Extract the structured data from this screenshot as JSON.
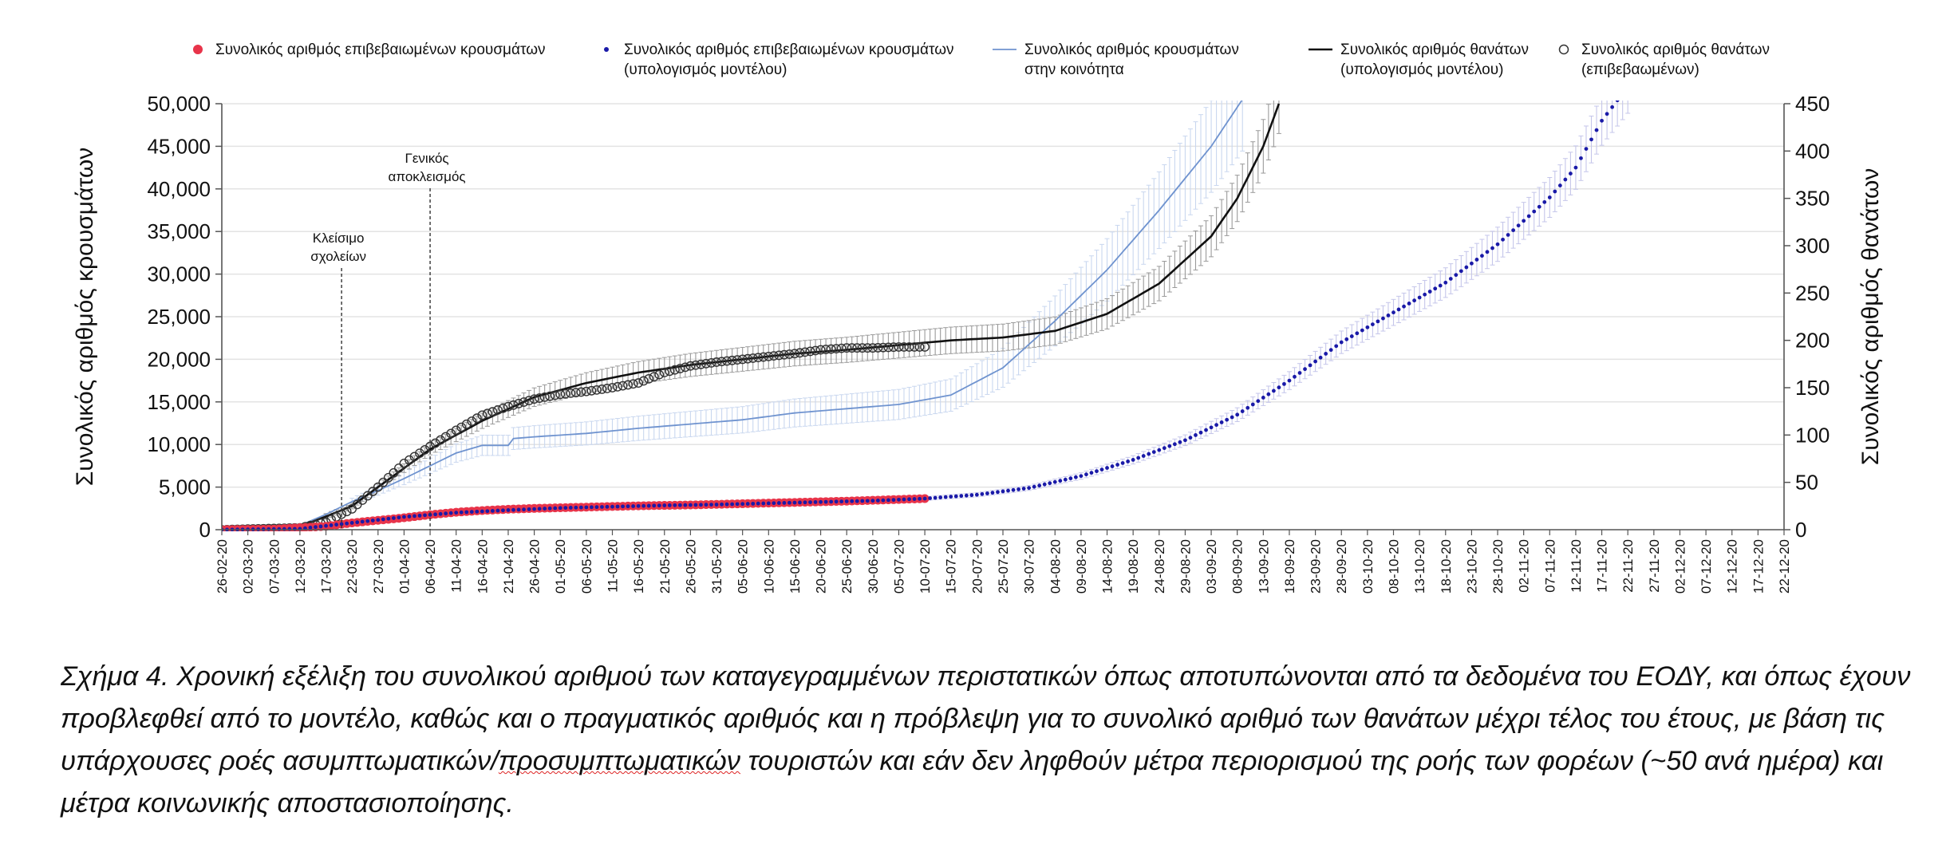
{
  "chart_data": {
    "type": "line",
    "x_dates": [
      "26-02-20",
      "02-03-20",
      "07-03-20",
      "12-03-20",
      "17-03-20",
      "22-03-20",
      "27-03-20",
      "01-04-20",
      "06-04-20",
      "11-04-20",
      "16-04-20",
      "21-04-20",
      "26-04-20",
      "01-05-20",
      "06-05-20",
      "11-05-20",
      "16-05-20",
      "21-05-20",
      "26-05-20",
      "31-05-20",
      "05-06-20",
      "10-06-20",
      "15-06-20",
      "20-06-20",
      "25-06-20",
      "30-06-20",
      "05-07-20",
      "10-07-20",
      "15-07-20",
      "20-07-20",
      "25-07-20",
      "30-07-20",
      "04-08-20",
      "09-08-20",
      "14-08-20",
      "19-08-20",
      "24-08-20",
      "29-08-20",
      "03-09-20",
      "08-09-20",
      "13-09-20",
      "18-09-20",
      "23-09-20",
      "28-09-20",
      "03-10-20",
      "08-10-20",
      "13-10-20",
      "18-10-20",
      "23-10-20",
      "28-10-20",
      "02-11-20",
      "07-11-20",
      "12-11-20",
      "17-11-20",
      "22-11-20",
      "27-11-20",
      "02-12-20",
      "07-12-20",
      "12-12-20",
      "17-12-20",
      "22-12-20"
    ],
    "y_left": {
      "label": "Συνολικός αριθμός κρουσμάτων",
      "ylim": [
        0,
        50000
      ],
      "ticks": [
        "0",
        "5,000",
        "10,000",
        "15,000",
        "20,000",
        "25,000",
        "30,000",
        "35,000",
        "40,000",
        "45,000",
        "50,000"
      ]
    },
    "y_right": {
      "label": "Συνολικός αριθμός θανάτων",
      "ylim": [
        0,
        450
      ],
      "ticks": [
        "0",
        "50",
        "100",
        "150",
        "200",
        "250",
        "300",
        "350",
        "400",
        "450"
      ]
    },
    "grid": true,
    "legend_position": "top",
    "series": [
      {
        "name": "Συνολικός αριθμός επιβεβαιωμένων κρουσμάτων",
        "axis": "left",
        "style": "red-dots",
        "color": "#e8344a",
        "points": [
          [
            "26-02-20",
            0
          ],
          [
            "07-03-20",
            60
          ],
          [
            "17-03-20",
            400
          ],
          [
            "22-03-20",
            800
          ],
          [
            "27-03-20",
            1100
          ],
          [
            "01-04-20",
            1400
          ],
          [
            "06-04-20",
            1750
          ],
          [
            "11-04-20",
            2050
          ],
          [
            "16-04-20",
            2250
          ],
          [
            "21-04-20",
            2400
          ],
          [
            "26-04-20",
            2500
          ],
          [
            "06-05-20",
            2650
          ],
          [
            "16-05-20",
            2800
          ],
          [
            "26-05-20",
            2900
          ],
          [
            "05-06-20",
            3050
          ],
          [
            "15-06-20",
            3200
          ],
          [
            "25-06-20",
            3350
          ],
          [
            "05-07-20",
            3550
          ],
          [
            "10-07-20",
            3650
          ]
        ]
      },
      {
        "name": "Συνολικός αριθμός επιβεβαιωμένων κρουσμάτων (υπολογισμός μοντέλου)",
        "axis": "left",
        "style": "blue-dots",
        "color": "#1a1aa8",
        "points": [
          [
            "26-02-20",
            0
          ],
          [
            "12-03-20",
            100
          ],
          [
            "22-03-20",
            800
          ],
          [
            "01-04-20",
            1500
          ],
          [
            "11-04-20",
            2000
          ],
          [
            "21-04-20",
            2300
          ],
          [
            "01-05-20",
            2550
          ],
          [
            "11-05-20",
            2700
          ],
          [
            "21-05-20",
            2850
          ],
          [
            "31-05-20",
            2950
          ],
          [
            "10-06-20",
            3100
          ],
          [
            "20-06-20",
            3250
          ],
          [
            "30-06-20",
            3400
          ],
          [
            "10-07-20",
            3650
          ],
          [
            "20-07-20",
            4100
          ],
          [
            "30-07-20",
            4900
          ],
          [
            "09-08-20",
            6300
          ],
          [
            "19-08-20",
            8200
          ],
          [
            "29-08-20",
            10500
          ],
          [
            "08-09-20",
            13500
          ],
          [
            "18-09-20",
            17500
          ],
          [
            "28-09-20",
            22000
          ],
          [
            "08-10-20",
            25500
          ],
          [
            "18-10-20",
            29000
          ],
          [
            "28-10-20",
            33500
          ],
          [
            "07-11-20",
            39000
          ],
          [
            "12-11-20",
            42500
          ],
          [
            "17-11-20",
            48000
          ],
          [
            "22-11-20",
            52000
          ]
        ]
      },
      {
        "name": "Συνολικός αριθμός κρουσμάτων στην κοινότητα",
        "axis": "left",
        "style": "line",
        "color": "#6f93cf",
        "points": [
          [
            "26-02-20",
            0
          ],
          [
            "12-03-20",
            500
          ],
          [
            "17-03-20",
            1800
          ],
          [
            "22-03-20",
            3300
          ],
          [
            "27-03-20",
            4600
          ],
          [
            "01-04-20",
            6000
          ],
          [
            "06-04-20",
            7500
          ],
          [
            "11-04-20",
            9000
          ],
          [
            "16-04-20",
            9900
          ],
          [
            "21-04-20",
            9900
          ],
          [
            "22-04-20",
            10700
          ],
          [
            "26-04-20",
            10900
          ],
          [
            "06-05-20",
            11300
          ],
          [
            "16-05-20",
            11900
          ],
          [
            "26-05-20",
            12400
          ],
          [
            "05-06-20",
            12900
          ],
          [
            "15-06-20",
            13700
          ],
          [
            "25-06-20",
            14200
          ],
          [
            "05-07-20",
            14700
          ],
          [
            "15-07-20",
            15800
          ],
          [
            "25-07-20",
            19000
          ],
          [
            "04-08-20",
            24500
          ],
          [
            "14-08-20",
            30500
          ],
          [
            "24-08-20",
            37500
          ],
          [
            "03-09-20",
            45000
          ],
          [
            "09-09-20",
            50500
          ]
        ]
      },
      {
        "name": "Συνολικός αριθμός θανάτων (υπολογισμός μοντέλου)",
        "axis": "right",
        "style": "line",
        "color": "#111111",
        "points": [
          [
            "26-02-20",
            0
          ],
          [
            "12-03-20",
            3
          ],
          [
            "22-03-20",
            25
          ],
          [
            "01-04-20",
            65
          ],
          [
            "06-04-20",
            85
          ],
          [
            "16-04-20",
            115
          ],
          [
            "26-04-20",
            140
          ],
          [
            "06-05-20",
            155
          ],
          [
            "16-05-20",
            166
          ],
          [
            "26-05-20",
            174
          ],
          [
            "05-06-20",
            180
          ],
          [
            "15-06-20",
            186
          ],
          [
            "25-06-20",
            190
          ],
          [
            "05-07-20",
            195
          ],
          [
            "15-07-20",
            200
          ],
          [
            "25-07-20",
            203
          ],
          [
            "04-08-20",
            210
          ],
          [
            "14-08-20",
            228
          ],
          [
            "24-08-20",
            260
          ],
          [
            "03-09-20",
            310
          ],
          [
            "08-09-20",
            350
          ],
          [
            "13-09-20",
            405
          ],
          [
            "16-09-20",
            450
          ]
        ]
      },
      {
        "name": "Συνολικός αριθμός θανάτων (επιβεβαιωμένων)",
        "axis": "right",
        "style": "open-circles",
        "color": "#333333",
        "points": [
          [
            "26-02-20",
            0
          ],
          [
            "12-03-20",
            2
          ],
          [
            "17-03-20",
            8
          ],
          [
            "22-03-20",
            22
          ],
          [
            "27-03-20",
            45
          ],
          [
            "01-04-20",
            70
          ],
          [
            "06-04-20",
            88
          ],
          [
            "11-04-20",
            105
          ],
          [
            "16-04-20",
            121
          ],
          [
            "21-04-20",
            130
          ],
          [
            "26-04-20",
            138
          ],
          [
            "01-05-20",
            143
          ],
          [
            "06-05-20",
            146
          ],
          [
            "11-05-20",
            150
          ],
          [
            "16-05-20",
            155
          ],
          [
            "21-05-20",
            166
          ],
          [
            "26-05-20",
            173
          ],
          [
            "31-05-20",
            177
          ],
          [
            "05-06-20",
            180
          ],
          [
            "10-06-20",
            183
          ],
          [
            "15-06-20",
            186
          ],
          [
            "20-06-20",
            190
          ],
          [
            "25-06-20",
            192
          ],
          [
            "30-06-20",
            192
          ],
          [
            "05-07-20",
            193
          ],
          [
            "10-07-20",
            193
          ]
        ]
      }
    ],
    "annotations": [
      {
        "date": "20-03-20",
        "text": [
          "Κλείσιμο",
          "σχολείων"
        ]
      },
      {
        "date": "06-04-20",
        "text": [
          "Γενικός",
          "αποκλεισμός"
        ]
      }
    ],
    "legend": [
      {
        "marker": "red-dot",
        "color": "#e8344a",
        "lines": [
          "Συνολικός αριθμός επιβεβαιωμένων κρουσμάτων"
        ]
      },
      {
        "marker": "blue-dot",
        "color": "#1a1aa8",
        "lines": [
          "Συνολικός αριθμός επιβεβαιωμένων κρουσμάτων",
          "(υπολογισμός μοντέλου)"
        ]
      },
      {
        "marker": "line",
        "color": "#6f93cf",
        "lines": [
          "Συνολικός αριθμός κρουσμάτων",
          "στην κοινότητα"
        ]
      },
      {
        "marker": "line",
        "color": "#111111",
        "lines": [
          "Συνολικός αριθμός θανάτων",
          "(υπολογισμός μοντέλου)"
        ]
      },
      {
        "marker": "circle",
        "color": "#333333",
        "lines": [
          "Συνολικός αριθμός θανάτων",
          "(επιβεβαωμένων)"
        ]
      }
    ]
  },
  "caption": {
    "before": "Σχήμα 4. Χρονική εξέλιξη του συνολικού αριθμού των καταγεγραμμένων περιστατικών όπως αποτυπώνονται από τα δεδομένα του ΕΟΔΥ, και όπως έχουν προβλεφθεί από το μοντέλο, καθώς και ο πραγματικός αριθμός και η πρόβλεψη για το συνολικό αριθμό των θανάτων μέχρι τέλος του έτους, με βάση τις υπάρχουσες ροές ασυμπτωματικών/",
    "underlined": "προσυμπτωματικών",
    "after": " τουριστών και εάν δεν ληφθούν μέτρα περιορισμού της ροής των φορέων (~50 ανά ημέρα) και μέτρα κοινωνικής αποστασιοποίησης."
  }
}
